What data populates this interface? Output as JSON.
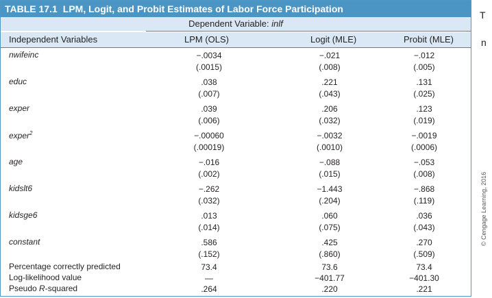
{
  "table": {
    "number": "TABLE 17.1",
    "title": "LPM, Logit, and Probit Estimates of Labor Force Participation",
    "dependent_prefix": "Dependent Variable:",
    "dependent_var": "inlf",
    "headers": {
      "vars": "Independent Variables",
      "lpm": "LPM (OLS)",
      "logit": "Logit (MLE)",
      "probit": "Probit (MLE)"
    },
    "rows": [
      {
        "name": "nwifeinc",
        "lpm": "−.0034",
        "lpm_se": "(.0015)",
        "logit": "−.021",
        "logit_se": "(.008)",
        "probit": "−.012",
        "probit_se": "(.005)"
      },
      {
        "name": "educ",
        "lpm": ".038",
        "lpm_se": "(.007)",
        "logit": ".221",
        "logit_se": "(.043)",
        "probit": ".131",
        "probit_se": "(.025)"
      },
      {
        "name": "exper",
        "lpm": ".039",
        "lpm_se": "(.006)",
        "logit": ".206",
        "logit_se": "(.032)",
        "probit": ".123",
        "probit_se": "(.019)"
      },
      {
        "name": "exper",
        "sup": "2",
        "lpm": "−.00060",
        "lpm_se": "(.00019)",
        "logit": "−.0032",
        "logit_se": "(.0010)",
        "probit": "−.0019",
        "probit_se": "(.0006)"
      },
      {
        "name": "age",
        "lpm": "−.016",
        "lpm_se": "(.002)",
        "logit": "−.088",
        "logit_se": "(.015)",
        "probit": "−.053",
        "probit_se": "(.008)"
      },
      {
        "name": "kidslt6",
        "lpm": "−.262",
        "lpm_se": "(.032)",
        "logit": "−1.443",
        "logit_se": "(.204)",
        "probit": "−.868",
        "probit_se": "(.119)"
      },
      {
        "name": "kidsge6",
        "lpm": ".013",
        "lpm_se": "(.014)",
        "logit": ".060",
        "logit_se": "(.075)",
        "probit": ".036",
        "probit_se": "(.043)"
      },
      {
        "name": "constant",
        "lpm": ".586",
        "lpm_se": "(.152)",
        "logit": ".425",
        "logit_se": "(.860)",
        "probit": ".270",
        "probit_se": "(.509)"
      }
    ],
    "stats": [
      {
        "label": "Percentage correctly predicted",
        "lpm": "73.4",
        "logit": "73.6",
        "probit": "73.4"
      },
      {
        "label": "Log-likelihood value",
        "lpm": "—",
        "logit": "−401.77",
        "probit": "−401.30"
      },
      {
        "label_prefix": "Pseudo ",
        "label_italic": "R",
        "label_suffix": "-squared",
        "lpm": ".264",
        "logit": ".220",
        "probit": ".221"
      }
    ]
  },
  "credit": "© Cengage Learning, 2016",
  "edge_chars": [
    "T",
    "n"
  ]
}
